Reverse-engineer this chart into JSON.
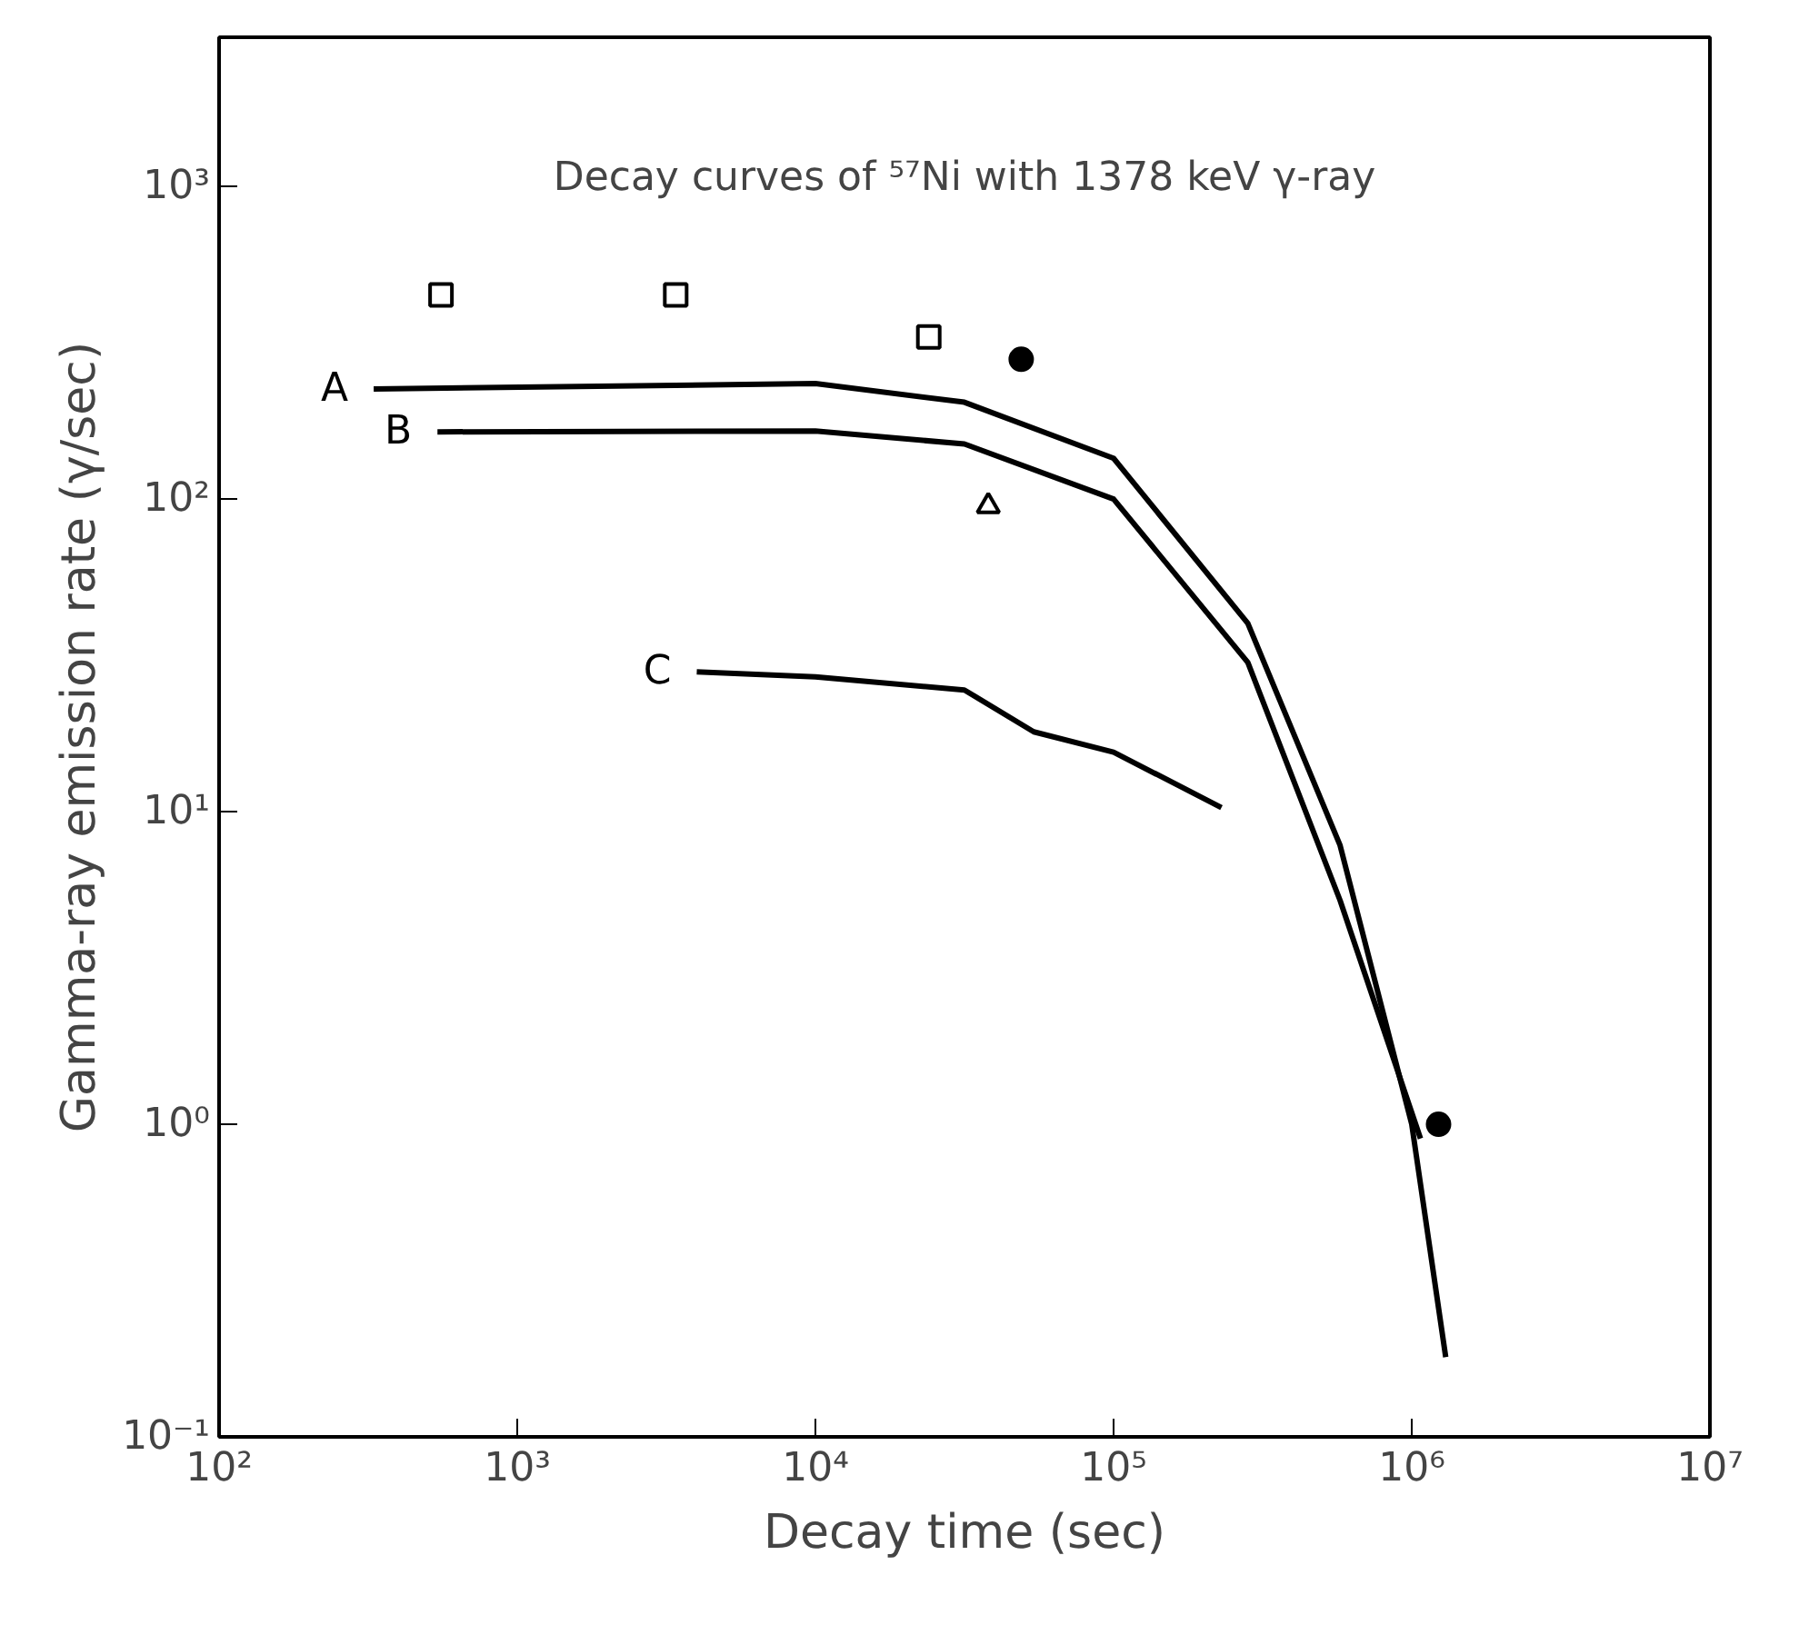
{
  "chart_data": {
    "type": "line",
    "title": "Decay curves of ⁵⁷Ni with 1378 keV γ-ray",
    "xlabel": "Decay time (sec)",
    "ylabel": "Gamma-ray emission rate (γ/sec)",
    "log": "xy",
    "grid": false,
    "line_style": "solid",
    "xlim": [
      100,
      10000000
    ],
    "ylim": [
      0.1,
      3000
    ],
    "xticks": [
      {
        "value": 100,
        "label": "10²"
      },
      {
        "value": 1000,
        "label": "10³"
      },
      {
        "value": 10000,
        "label": "10⁴"
      },
      {
        "value": 100000,
        "label": "10⁵"
      },
      {
        "value": 1000000,
        "label": "10⁶"
      },
      {
        "value": 10000000,
        "label": "10⁷"
      }
    ],
    "yticks": [
      {
        "value": 0.1,
        "label": "10⁻¹"
      },
      {
        "value": 1,
        "label": "10⁰"
      },
      {
        "value": 10,
        "label": "10¹"
      },
      {
        "value": 100,
        "label": "10²"
      },
      {
        "value": 1000,
        "label": "10³"
      }
    ],
    "series": [
      {
        "name": "A",
        "color": "#000000",
        "x": [
          330,
          10000,
          31600,
          100000,
          282000,
          575000,
          1000000,
          1300000
        ],
        "values": [
          225,
          234,
          204,
          135,
          40,
          7.8,
          1.0,
          0.18
        ]
      },
      {
        "name": "B",
        "color": "#000000",
        "x": [
          540,
          10000,
          31600,
          100000,
          282000,
          575000,
          1070000
        ],
        "values": [
          164,
          165,
          150,
          100,
          30,
          5.2,
          0.9
        ]
      },
      {
        "name": "C",
        "color": "#000000",
        "x": [
          4000,
          10000,
          31600,
          54000,
          100000,
          230000
        ],
        "values": [
          28,
          27,
          24.5,
          18,
          15.5,
          10.3
        ]
      },
      {
        "type": "scatter",
        "marker": "square",
        "color": "#000000",
        "x": [
          555,
          3400,
          24000
        ],
        "values": [
          450,
          450,
          330
        ]
      },
      {
        "type": "scatter",
        "marker": "circle",
        "color": "#000000",
        "x": [
          49000,
          1230000
        ],
        "values": [
          280,
          1.0
        ]
      },
      {
        "type": "scatter",
        "marker": "triangle",
        "color": "#000000",
        "x": [
          38000
        ],
        "values": [
          95
        ]
      }
    ]
  }
}
